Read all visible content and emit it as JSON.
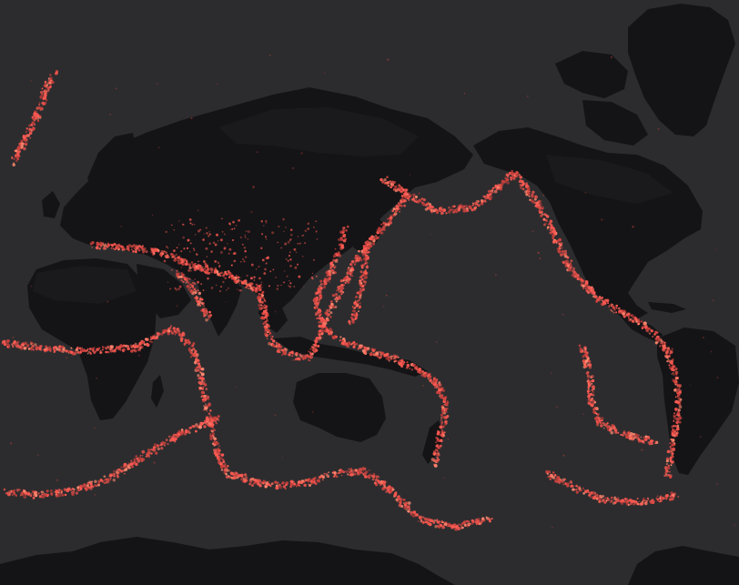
{
  "map": {
    "projection": "equirectangular-pacific-centered",
    "basemap": "dark",
    "colors": {
      "ocean": "#2c2c2e",
      "land": "#141416",
      "land_highlight": "#1c1c1f",
      "quake_primary": "#ff5a52",
      "quake_bright": "#ff8a70",
      "quake_dim": "#c8403c"
    },
    "layer": {
      "name": "earthquake-epicenters",
      "symbol": "dot",
      "color_key": "quake_primary"
    }
  }
}
